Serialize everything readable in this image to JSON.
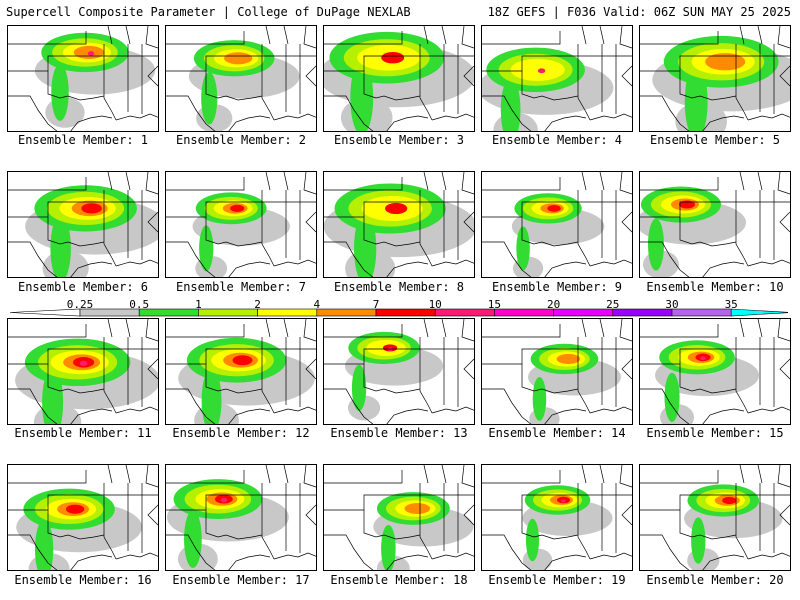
{
  "header": {
    "title_left": "Supercell Composite Parameter | College of DuPage NEXLAB",
    "title_right": "18Z GEFS | F036 Valid: 06Z SUN MAY 25 2025"
  },
  "members": [
    {
      "label": "Ensemble Member: 1"
    },
    {
      "label": "Ensemble Member: 2"
    },
    {
      "label": "Ensemble Member: 3"
    },
    {
      "label": "Ensemble Member: 4"
    },
    {
      "label": "Ensemble Member: 5"
    },
    {
      "label": "Ensemble Member: 6"
    },
    {
      "label": "Ensemble Member: 7"
    },
    {
      "label": "Ensemble Member: 8"
    },
    {
      "label": "Ensemble Member: 9"
    },
    {
      "label": "Ensemble Member: 10"
    },
    {
      "label": "Ensemble Member: 11"
    },
    {
      "label": "Ensemble Member: 12"
    },
    {
      "label": "Ensemble Member: 13"
    },
    {
      "label": "Ensemble Member: 14"
    },
    {
      "label": "Ensemble Member: 15"
    },
    {
      "label": "Ensemble Member: 16"
    },
    {
      "label": "Ensemble Member: 17"
    },
    {
      "label": "Ensemble Member: 18"
    },
    {
      "label": "Ensemble Member: 19"
    },
    {
      "label": "Ensemble Member: 20"
    }
  ],
  "legend": {
    "tick_labels": [
      "0.25",
      "0.5",
      "1",
      "2",
      "4",
      "7",
      "10",
      "15",
      "20",
      "25",
      "30",
      "35"
    ],
    "colors": [
      "#c8c8c8",
      "#32dc32",
      "#b4f000",
      "#ffff00",
      "#ff8c00",
      "#ff0000",
      "#ff1a75",
      "#ff00c8",
      "#e600ff",
      "#9600ff",
      "#b464e6",
      "#00ffff"
    ]
  }
}
